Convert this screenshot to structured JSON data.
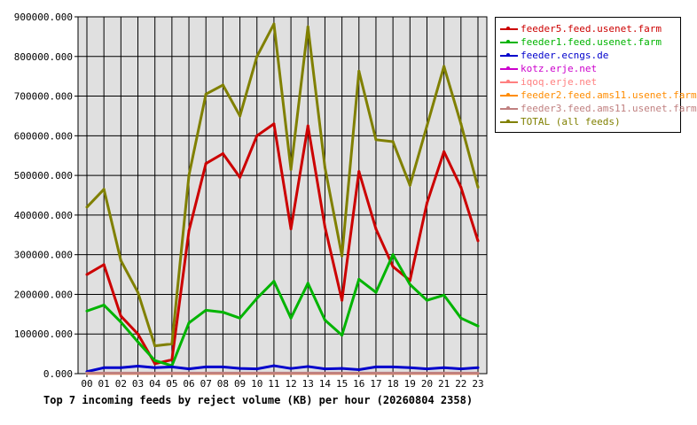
{
  "chart_data": {
    "type": "line",
    "title": "Top 7 incoming feeds by reject volume (KB) per hour (20260804 2358)",
    "categories": [
      "00",
      "01",
      "02",
      "03",
      "04",
      "05",
      "06",
      "07",
      "08",
      "09",
      "10",
      "11",
      "12",
      "13",
      "14",
      "15",
      "16",
      "17",
      "18",
      "19",
      "20",
      "21",
      "22",
      "23"
    ],
    "ylim": [
      0,
      900000
    ],
    "yticks": [
      "0.000",
      "100000.000",
      "200000.000",
      "300000.000",
      "400000.000",
      "500000.000",
      "600000.000",
      "700000.000",
      "800000.000",
      "900000.000"
    ],
    "grid": true,
    "legend_position": "right",
    "plot_background": "#e0e0e0",
    "series": [
      {
        "name": "feeder5.feed.usenet.farm",
        "color": "#cc0000",
        "values": [
          250000,
          275000,
          145000,
          100000,
          25000,
          35000,
          360000,
          530000,
          555000,
          495000,
          600000,
          630000,
          365000,
          625000,
          370000,
          185000,
          510000,
          365000,
          270000,
          235000,
          430000,
          560000,
          470000,
          335000
        ]
      },
      {
        "name": "feeder1.feed.usenet.farm",
        "color": "#00b400",
        "values": [
          158000,
          173000,
          130000,
          80000,
          33000,
          20000,
          128000,
          160000,
          155000,
          140000,
          190000,
          233000,
          140000,
          228000,
          135000,
          97000,
          238000,
          205000,
          300000,
          225000,
          185000,
          198000,
          140000,
          120000
        ]
      },
      {
        "name": "feeder.ecngs.de",
        "color": "#0000cc",
        "values": [
          5000,
          15000,
          15000,
          19000,
          15000,
          17000,
          12000,
          17000,
          17000,
          13000,
          12000,
          20000,
          13000,
          18000,
          12000,
          13000,
          10000,
          17000,
          17000,
          15000,
          12000,
          15000,
          12000,
          15000
        ]
      },
      {
        "name": "kotz.erje.net",
        "color": "#cc00cc",
        "values": [
          1000,
          1000,
          1000,
          1000,
          1000,
          1000,
          1000,
          1000,
          1000,
          1000,
          1000,
          1000,
          1000,
          1000,
          1000,
          1000,
          1000,
          1000,
          1000,
          1000,
          1000,
          1000,
          1000,
          1000
        ]
      },
      {
        "name": "iqoq.erje.net",
        "color": "#ff8080",
        "values": [
          500,
          500,
          500,
          500,
          500,
          500,
          500,
          500,
          500,
          500,
          500,
          500,
          500,
          500,
          500,
          500,
          500,
          500,
          500,
          500,
          500,
          500,
          500,
          500
        ]
      },
      {
        "name": "feeder2.feed.ams11.usenet.farm",
        "color": "#ff8c00",
        "values": [
          800,
          800,
          800,
          800,
          800,
          800,
          800,
          800,
          800,
          800,
          800,
          800,
          800,
          800,
          800,
          800,
          800,
          800,
          800,
          800,
          800,
          800,
          800,
          800
        ]
      },
      {
        "name": "feeder3.feed.ams11.usenet.farm",
        "color": "#c08080",
        "values": [
          1500,
          1500,
          1500,
          1500,
          1500,
          1500,
          1500,
          1500,
          1500,
          1500,
          1500,
          1500,
          1500,
          1500,
          1500,
          1500,
          1500,
          1500,
          1500,
          1500,
          1500,
          1500,
          1500,
          1500
        ]
      },
      {
        "name": "TOTAL (all feeds)",
        "color": "#808000",
        "values": [
          420000,
          465000,
          285000,
          205000,
          70000,
          75000,
          500000,
          705000,
          728000,
          650000,
          800000,
          882000,
          515000,
          875000,
          520000,
          297000,
          763000,
          590000,
          585000,
          475000,
          625000,
          775000,
          630000,
          470000
        ]
      }
    ]
  }
}
